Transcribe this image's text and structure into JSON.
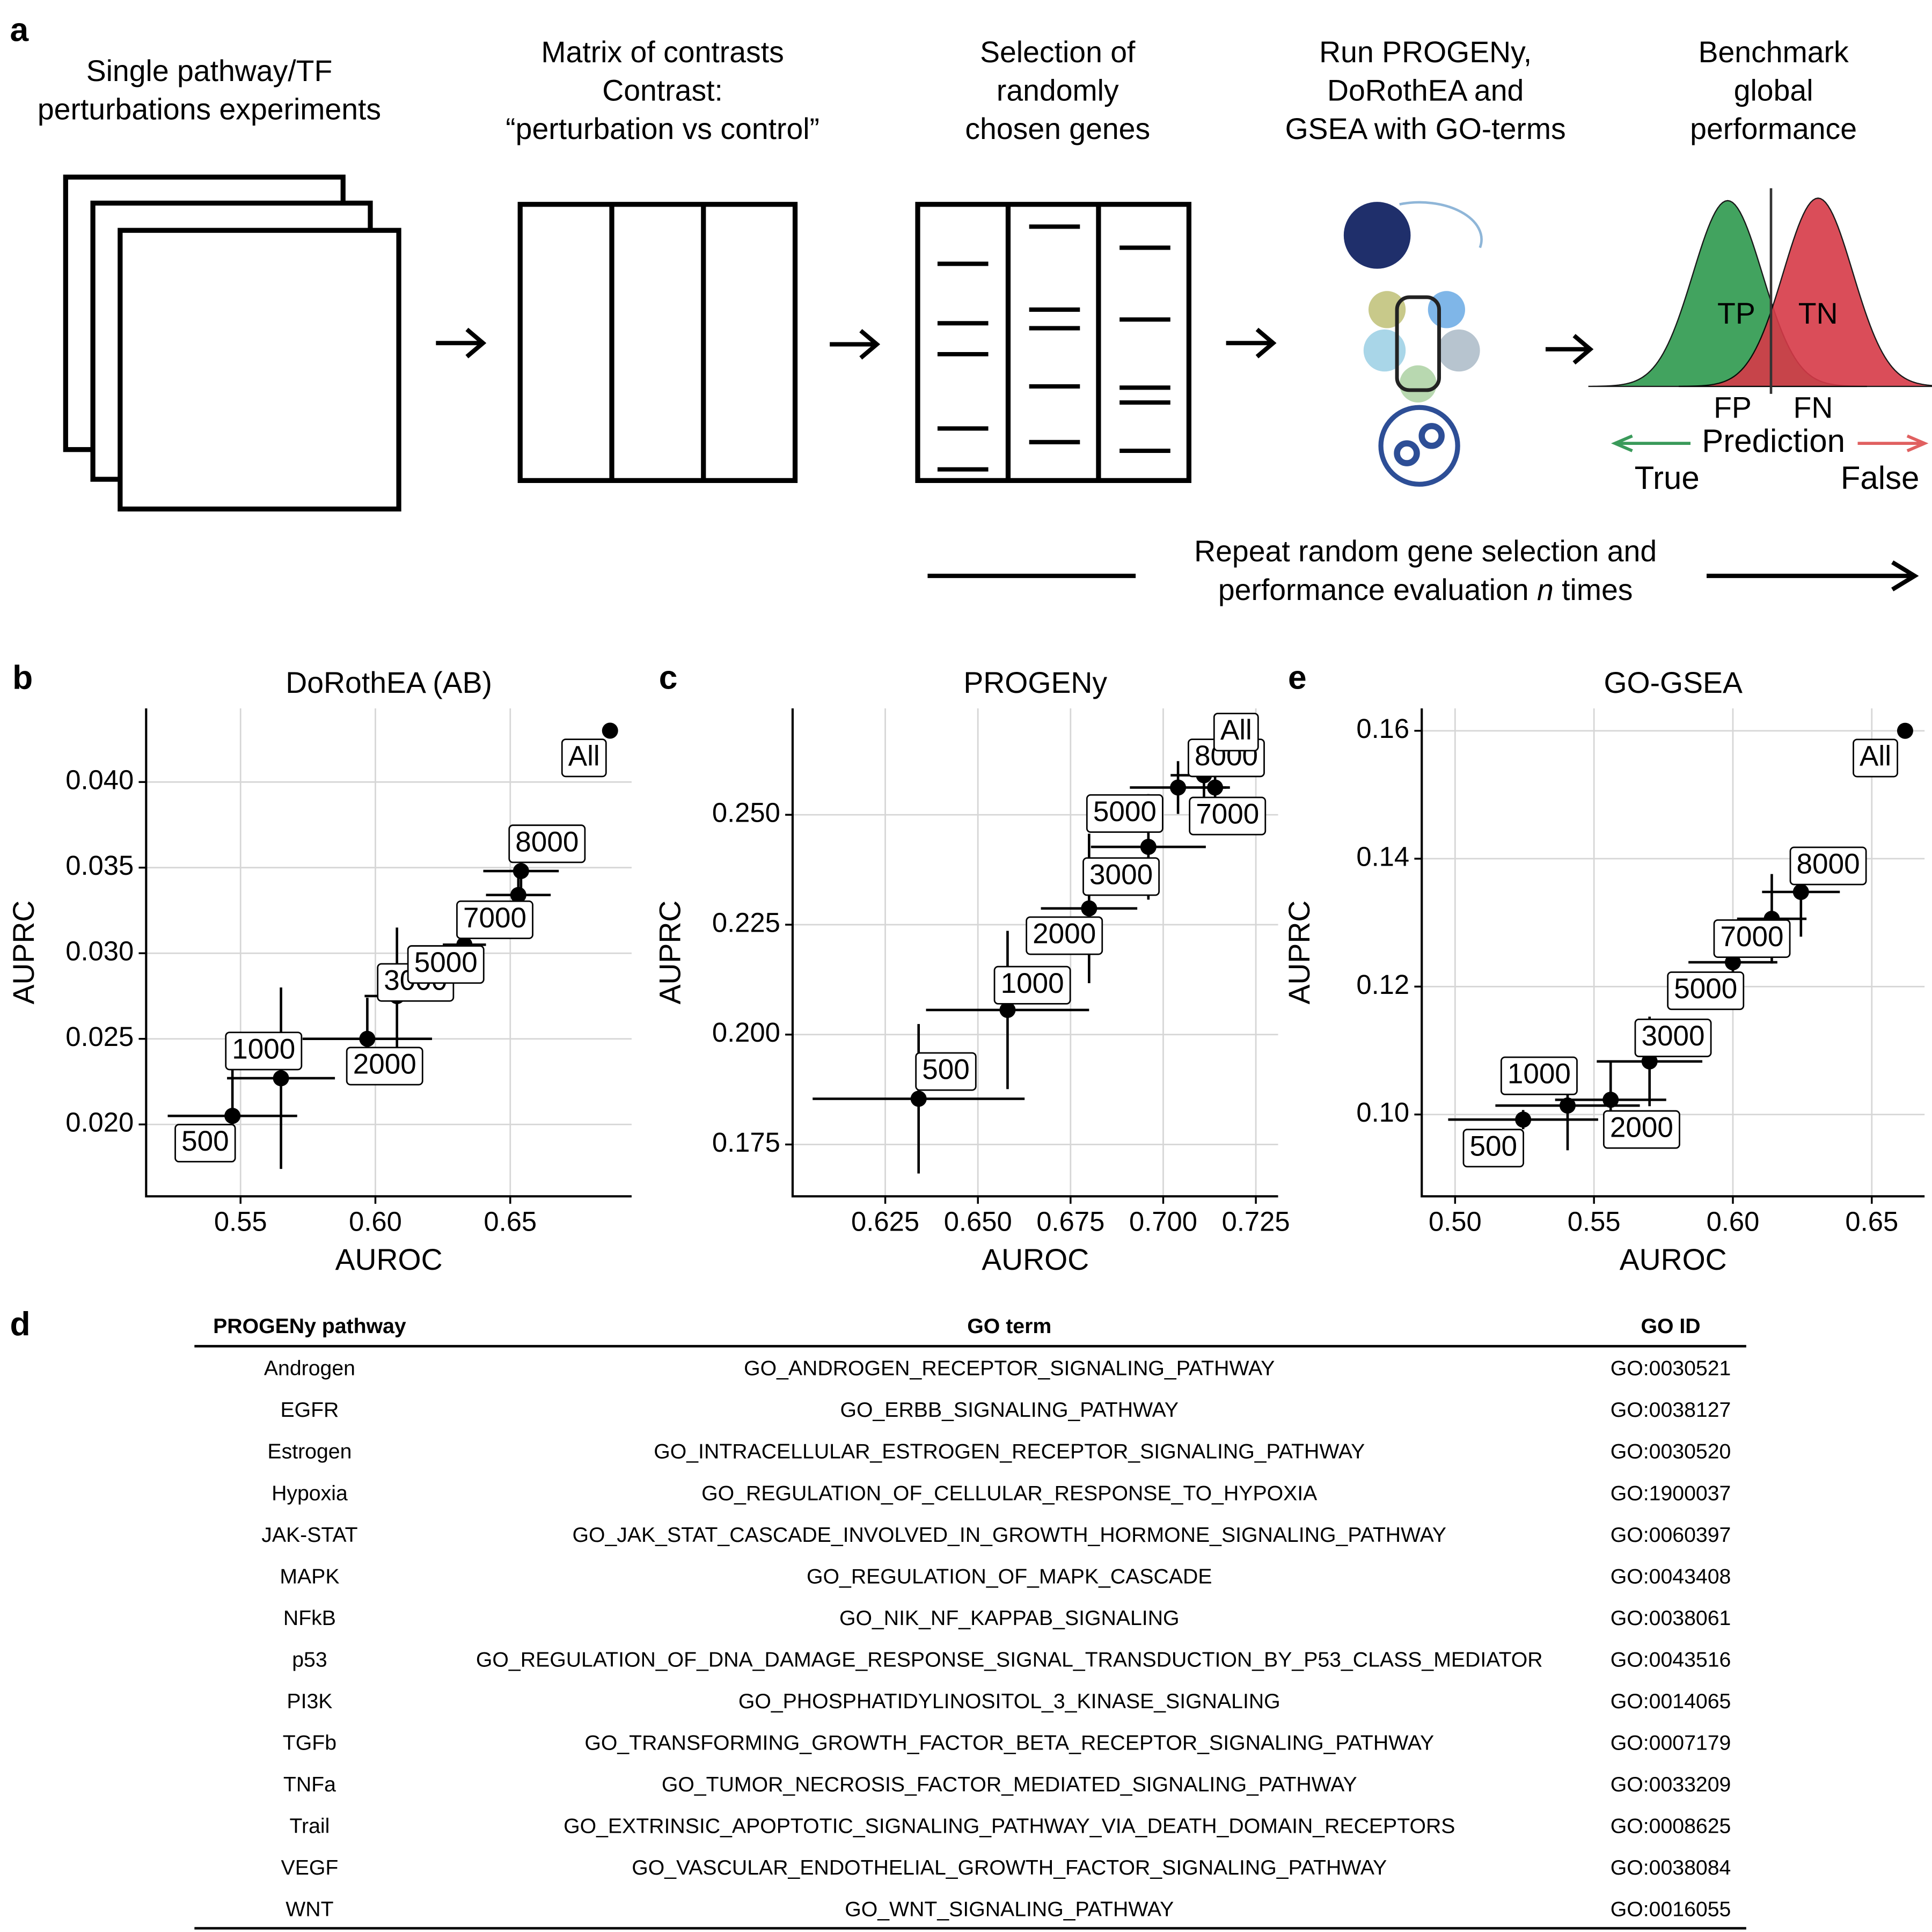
{
  "workflow": {
    "label": "a",
    "steps": [
      {
        "lines": [
          "Single pathway/TF",
          "perturbations experiments"
        ]
      },
      {
        "lines": [
          "Matrix of contrasts",
          "Contrast:",
          "“perturbation vs control”"
        ]
      },
      {
        "lines": [
          "Selection of",
          "randomly",
          "chosen genes"
        ]
      },
      {
        "lines": [
          "Run PROGENy,",
          "DoRothEA and",
          "GSEA with GO-terms"
        ]
      },
      {
        "lines": [
          "Benchmark",
          "global",
          "performance"
        ]
      }
    ],
    "prediction_labels": {
      "tp": "TP",
      "tn": "TN",
      "fp": "FP",
      "fn": "FN",
      "axis": "Prediction",
      "true": "True",
      "false": "False"
    },
    "repeat": {
      "line1": "Repeat random gene selection and",
      "line2": [
        "performance evaluation ",
        "n",
        " times"
      ]
    }
  },
  "chart_data": [
    {
      "type": "scatter",
      "label": "b",
      "title": "DoRothEA (AB)",
      "x_label": "AUROC",
      "y_label": "AUPRC",
      "labels": [
        "500",
        "1000",
        "2000",
        "3000",
        "5000",
        "7000",
        "8000",
        "All"
      ],
      "x": [
        0.547,
        0.565,
        0.597,
        0.608,
        0.633,
        0.653,
        0.654,
        0.687
      ],
      "values": [
        0.0205,
        0.0227,
        0.025,
        0.0275,
        0.0305,
        0.0334,
        0.0348,
        0.043
      ],
      "x_err": [
        0.024,
        0.02,
        0.024,
        0.012,
        0.008,
        0.012,
        0.014,
        null
      ],
      "y_err": [
        0.0027,
        0.0053,
        0.0024,
        0.004,
        0.002,
        0.001,
        0.0012,
        null
      ],
      "color": "#000000",
      "xlim": [
        0.515,
        0.695
      ],
      "ylim": [
        0.0158,
        0.0443
      ],
      "xticks": [
        0.55,
        {
          "value": 0.6,
          "label": "0.60"
        },
        0.65
      ],
      "yticks": [
        {
          "value": 0.02,
          "label": "0.020"
        },
        0.025,
        {
          "value": 0.03,
          "label": "0.030"
        },
        0.035,
        {
          "value": 0.04,
          "label": "0.040"
        }
      ],
      "grid": true
    },
    {
      "type": "scatter",
      "label": "c",
      "title": "PROGENy",
      "x_label": "AUROC",
      "y_label": "AUPRC",
      "labels": [
        "500",
        "1000",
        "2000",
        "3000",
        "5000",
        "7000",
        "8000",
        "All"
      ],
      "x": [
        0.634,
        0.658,
        0.68,
        0.696,
        0.704,
        0.714,
        0.711,
        0.718
      ],
      "values": [
        0.1854,
        0.2056,
        0.2287,
        0.2427,
        0.2562,
        0.2562,
        0.259,
        0.266
      ],
      "x_err": [
        0.0286,
        0.022,
        0.013,
        0.0155,
        0.013,
        0.004,
        0.009,
        null
      ],
      "y_err": [
        0.017,
        0.018,
        0.017,
        0.012,
        0.006,
        0.004,
        0.008,
        null
      ],
      "color": "#000000",
      "xlim": [
        0.6,
        0.731
      ],
      "ylim": [
        0.1632,
        0.2742
      ],
      "xticks": [
        0.625,
        {
          "value": 0.65,
          "label": "0.650"
        },
        0.675,
        {
          "value": 0.7,
          "label": "0.700"
        },
        0.725
      ],
      "yticks": [
        0.175,
        {
          "value": 0.2,
          "label": "0.200"
        },
        0.225,
        {
          "value": 0.25,
          "label": "0.250"
        }
      ],
      "grid": true
    },
    {
      "type": "scatter",
      "label": "e",
      "title": "GO-GSEA",
      "x_label": "AUROC",
      "y_label": "AUPRC",
      "labels": [
        "500",
        "1000",
        "2000",
        "3000",
        "5000",
        "7000",
        "8000",
        "All"
      ],
      "x": [
        0.5245,
        0.5405,
        0.556,
        0.57,
        0.6,
        0.614,
        0.6245,
        0.662
      ],
      "values": [
        0.0992,
        0.1014,
        0.1023,
        0.1083,
        0.1238,
        0.1306,
        0.1348,
        0.16
      ],
      "x_err": [
        0.027,
        0.026,
        0.02,
        0.019,
        0.016,
        0.0125,
        0.014,
        null
      ],
      "y_err": [
        0.0015,
        0.007,
        0.006,
        0.007,
        0.003,
        0.007,
        0.007,
        null
      ],
      "color": "#000000",
      "xlim": [
        0.488,
        0.669
      ],
      "ylim": [
        0.0872,
        0.1635
      ],
      "xticks": [
        {
          "value": 0.5,
          "label": "0.50"
        },
        0.55,
        {
          "value": 0.6,
          "label": "0.60"
        },
        0.65
      ],
      "yticks": [
        {
          "value": 0.1,
          "label": "0.10"
        },
        0.12,
        0.14,
        0.16
      ],
      "grid": true
    }
  ],
  "table": {
    "label": "d",
    "header": [
      "PROGENy pathway",
      "GO term",
      "GO ID"
    ],
    "rows": [
      [
        "Androgen",
        "GO_ANDROGEN_RECEPTOR_SIGNALING_PATHWAY",
        "GO:0030521"
      ],
      [
        "EGFR",
        "GO_ERBB_SIGNALING_PATHWAY",
        "GO:0038127"
      ],
      [
        "Estrogen",
        "GO_INTRACELLULAR_ESTROGEN_RECEPTOR_SIGNALING_PATHWAY",
        "GO:0030520"
      ],
      [
        "Hypoxia",
        "GO_REGULATION_OF_CELLULAR_RESPONSE_TO_HYPOXIA",
        "GO:1900037"
      ],
      [
        "JAK-STAT",
        "GO_JAK_STAT_CASCADE_INVOLVED_IN_GROWTH_HORMONE_SIGNALING_PATHWAY",
        "GO:0060397"
      ],
      [
        "MAPK",
        "GO_REGULATION_OF_MAPK_CASCADE",
        "GO:0043408"
      ],
      [
        "NFkB",
        "GO_NIK_NF_KAPPAB_SIGNALING",
        "GO:0038061"
      ],
      [
        "p53",
        "GO_REGULATION_OF_DNA_DAMAGE_RESPONSE_SIGNAL_TRANSDUCTION_BY_P53_CLASS_MEDIATOR",
        "GO:0043516"
      ],
      [
        "PI3K",
        "GO_PHOSPHATIDYLINOSITOL_3_KINASE_SIGNALING",
        "GO:0014065"
      ],
      [
        "TGFb",
        "GO_TRANSFORMING_GROWTH_FACTOR_BETA_RECEPTOR_SIGNALING_PATHWAY",
        "GO:0007179"
      ],
      [
        "TNFa",
        "GO_TUMOR_NECROSIS_FACTOR_MEDIATED_SIGNALING_PATHWAY",
        "GO:0033209"
      ],
      [
        "Trail",
        "GO_EXTRINSIC_APOPTOTIC_SIGNALING_PATHWAY_VIA_DEATH_DOMAIN_RECEPTORS",
        "GO:0008625"
      ],
      [
        "VEGF",
        "GO_VASCULAR_ENDOTHELIAL_GROWTH_FACTOR_SIGNALING_PATHWAY",
        "GO:0038084"
      ],
      [
        "WNT",
        "GO_WNT_SIGNALING_PATHWAY",
        "GO:0016055"
      ]
    ]
  }
}
